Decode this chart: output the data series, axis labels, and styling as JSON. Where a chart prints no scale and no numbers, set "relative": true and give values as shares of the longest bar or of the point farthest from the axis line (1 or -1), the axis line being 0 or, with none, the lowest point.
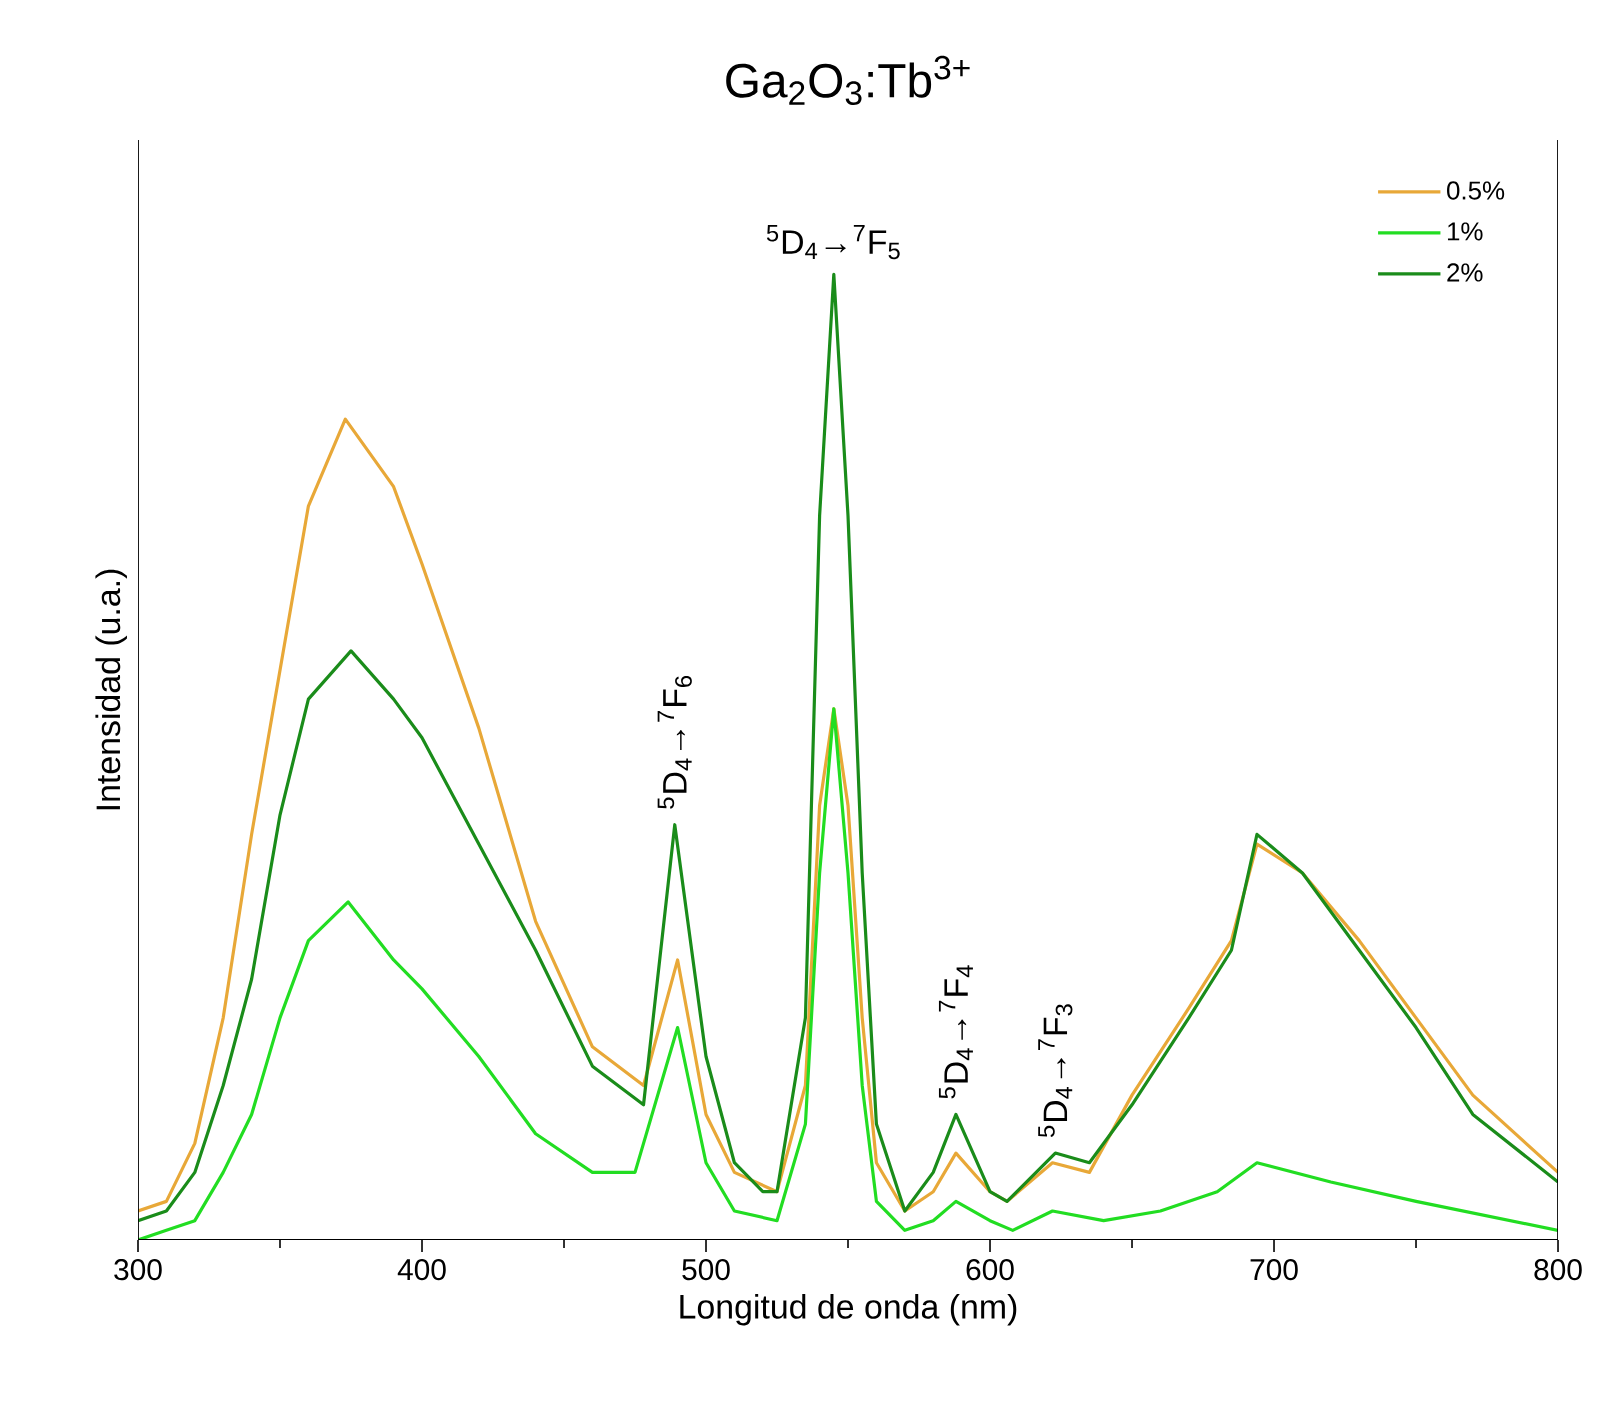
{
  "chart_data": {
    "type": "line",
    "title": "Ga$_{2}$O$_{3}$:Tb$^{3+}$",
    "xlabel": "Longitud de onda (nm)",
    "ylabel": "Intensidad (u.a.)",
    "relative": true,
    "xlim": [
      300,
      800
    ],
    "xticks": [
      300,
      400,
      500,
      600,
      700,
      800
    ],
    "legend": "top right",
    "annotations": [
      {
        "text": "$^{5}$D$_{4}$→$^{7}$F$_{5}$",
        "x": 545,
        "y": 1.0
      },
      {
        "text": "$^{5}$D$_{4}$→$^{7}$F$_{6}$",
        "x": 489,
        "y": 0.43
      },
      {
        "text": "$^{5}$D$_{4}$→$^{7}$F$_{4}$",
        "x": 588,
        "y": 0.13
      },
      {
        "text": "$^{5}$D$_{4}$→$^{7}$F$_{3}$",
        "x": 623,
        "y": 0.09
      }
    ],
    "series": [
      {
        "name": "0.5%",
        "color": "#e8a838",
        "x": [
          300,
          310,
          320,
          330,
          340,
          350,
          360,
          373,
          390,
          400,
          420,
          440,
          460,
          478,
          490,
          500,
          510,
          525,
          535,
          540,
          545,
          550,
          555,
          560,
          570,
          580,
          588,
          600,
          606,
          622,
          635,
          650,
          670,
          685,
          694,
          710,
          730,
          750,
          770,
          800
        ],
        "values": [
          0.03,
          0.04,
          0.1,
          0.23,
          0.42,
          0.59,
          0.76,
          0.85,
          0.78,
          0.7,
          0.53,
          0.33,
          0.2,
          0.16,
          0.29,
          0.13,
          0.07,
          0.05,
          0.16,
          0.45,
          0.55,
          0.45,
          0.23,
          0.08,
          0.03,
          0.05,
          0.09,
          0.05,
          0.04,
          0.08,
          0.07,
          0.15,
          0.24,
          0.31,
          0.41,
          0.38,
          0.31,
          0.23,
          0.15,
          0.07
        ]
      },
      {
        "name": "1%",
        "color": "#22dd22",
        "x": [
          300,
          310,
          320,
          330,
          340,
          350,
          360,
          374,
          390,
          400,
          420,
          440,
          460,
          475,
          490,
          500,
          510,
          525,
          535,
          540,
          545,
          550,
          555,
          560,
          570,
          580,
          588,
          600,
          608,
          622,
          640,
          660,
          680,
          694,
          720,
          750,
          800
        ],
        "values": [
          0.0,
          0.01,
          0.02,
          0.07,
          0.13,
          0.23,
          0.31,
          0.35,
          0.29,
          0.26,
          0.19,
          0.11,
          0.07,
          0.07,
          0.22,
          0.08,
          0.03,
          0.02,
          0.12,
          0.38,
          0.55,
          0.38,
          0.16,
          0.04,
          0.01,
          0.02,
          0.04,
          0.02,
          0.01,
          0.03,
          0.02,
          0.03,
          0.05,
          0.08,
          0.06,
          0.04,
          0.01
        ]
      },
      {
        "name": "2%",
        "color": "#1a8c1a",
        "x": [
          300,
          310,
          320,
          330,
          340,
          350,
          360,
          375,
          390,
          400,
          420,
          440,
          460,
          478,
          489,
          500,
          510,
          520,
          525,
          535,
          540,
          545,
          550,
          555,
          560,
          570,
          580,
          588,
          600,
          606,
          623,
          635,
          650,
          670,
          685,
          694,
          710,
          730,
          750,
          770,
          800
        ],
        "values": [
          0.02,
          0.03,
          0.07,
          0.16,
          0.27,
          0.44,
          0.56,
          0.61,
          0.56,
          0.52,
          0.41,
          0.3,
          0.18,
          0.14,
          0.43,
          0.19,
          0.08,
          0.05,
          0.05,
          0.23,
          0.75,
          1.0,
          0.75,
          0.38,
          0.12,
          0.03,
          0.07,
          0.13,
          0.05,
          0.04,
          0.09,
          0.08,
          0.14,
          0.23,
          0.3,
          0.42,
          0.38,
          0.3,
          0.22,
          0.13,
          0.06
        ]
      }
    ]
  }
}
